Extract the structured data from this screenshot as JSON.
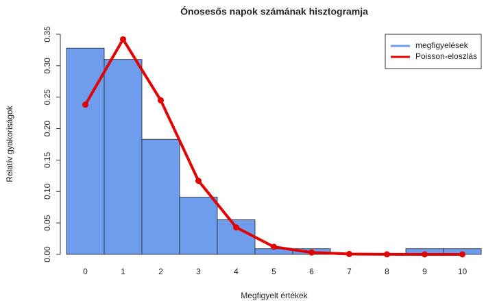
{
  "chart_data": {
    "type": "bar",
    "title": "Ónosesős napok számának hisztogramja",
    "x_label": "Megfigyelt értékek",
    "y_label": "Relatív gyakoriságok",
    "categories": [
      "0",
      "1",
      "2",
      "3",
      "4",
      "5",
      "6",
      "7",
      "8",
      "9",
      "10"
    ],
    "series": [
      {
        "name": "megfigyelések",
        "color": "#6f9ded",
        "type": "bar",
        "values": [
          0.328,
          0.31,
          0.183,
          0.091,
          0.055,
          0.009,
          0.009,
          0,
          0,
          0.009,
          0.009
        ]
      },
      {
        "name": "Poisson-eloszlás",
        "color": "#e00000",
        "type": "line",
        "values": [
          0.238,
          0.342,
          0.245,
          0.117,
          0.043,
          0.012,
          0.003,
          0.0006,
          0.0001,
          0,
          0
        ]
      }
    ],
    "ylim": [
      0,
      0.35
    ],
    "yticks": [
      {
        "value": 0,
        "label": "0.00"
      },
      {
        "value": 0.05,
        "label": "0.05"
      },
      {
        "value": 0.1,
        "label": "0.10"
      },
      {
        "value": 0.15,
        "label": "0.15"
      },
      {
        "value": 0.2,
        "label": "0.20"
      },
      {
        "value": 0.25,
        "label": "0.25"
      },
      {
        "value": 0.3,
        "label": "0.30"
      },
      {
        "value": 0.35,
        "label": "0.35"
      }
    ],
    "legend": "top-right"
  }
}
